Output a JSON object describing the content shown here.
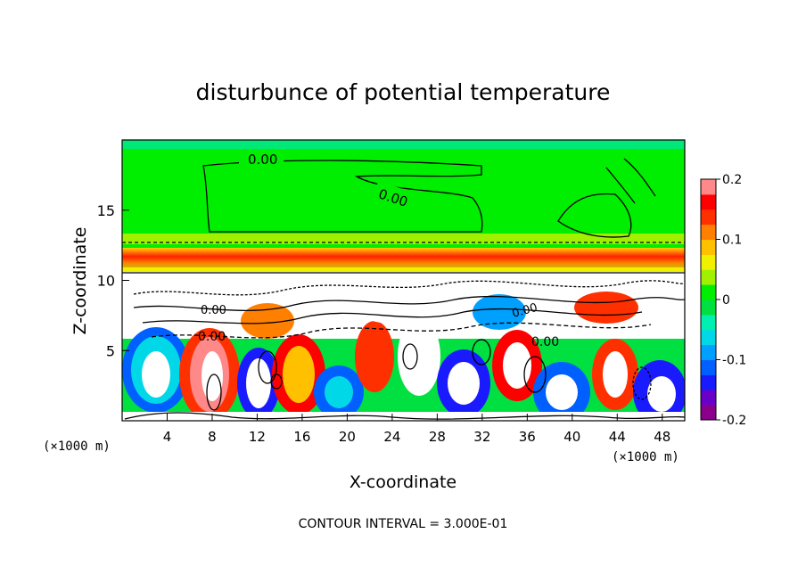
{
  "chart_data": {
    "type": "heatmap",
    "title": "disturbunce of potential temperature",
    "xlabel": "X-coordinate",
    "ylabel": "Z-coordinate",
    "x_unit": "(×1000 m)",
    "x_range": [
      0,
      50
    ],
    "y_range": [
      0,
      20
    ],
    "x_ticks": [
      4,
      8,
      12,
      16,
      20,
      24,
      28,
      32,
      36,
      40,
      44,
      48
    ],
    "x_tick_labels": [
      "4",
      "8",
      "12",
      "16",
      "20",
      "24",
      "28",
      "32",
      "36",
      "40",
      "44",
      "48"
    ],
    "y_ticks": [
      5,
      10,
      15
    ],
    "y_tick_labels": [
      "5",
      "10",
      "15"
    ],
    "colorbar": {
      "min": -0.2,
      "max": 0.2,
      "ticks": [
        0.2,
        0.1,
        0,
        -0.1,
        -0.2
      ],
      "tick_labels": [
        "0.2",
        "0.1",
        "0",
        "-0.1",
        "-0.2"
      ],
      "colors": [
        "#8b008b",
        "#6a00c8",
        "#1a1aff",
        "#0060ff",
        "#00a0ff",
        "#00d8e8",
        "#00f0b0",
        "#00e040",
        "#00ee00",
        "#a0f000",
        "#f0f000",
        "#ffc000",
        "#ff8000",
        "#ff3000",
        "#ff0000",
        "#ff8888"
      ]
    },
    "contour_labels": [
      "0.00",
      "0.00",
      "0.00",
      "0.00",
      "0.00",
      "0.00"
    ],
    "contour_interval_text": "CONTOUR INTERVAL = 3.000E-01",
    "legend": "right"
  }
}
